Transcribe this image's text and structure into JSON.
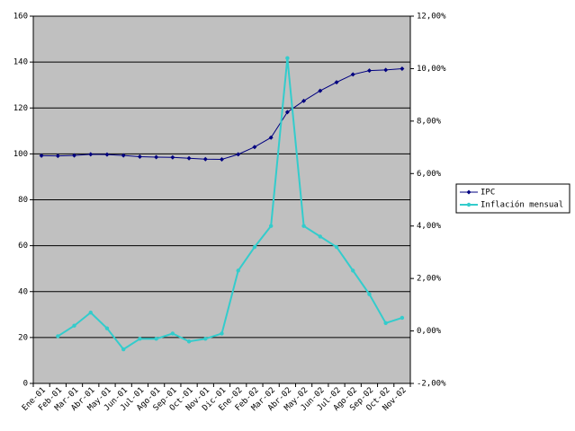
{
  "chart_data": {
    "type": "line",
    "categories": [
      "Ene-01",
      "Feb-01",
      "Mar-01",
      "Abr-01",
      "May-01",
      "Jun-01",
      "Jul-01",
      "Ago-01",
      "Sep-01",
      "Oct-01",
      "Nov-01",
      "Dic-01",
      "Ene-02",
      "Feb-02",
      "Mar-02",
      "Abr-02",
      "May-02",
      "Jun-02",
      "Jul-02",
      "Ago-02",
      "Sep-02",
      "Oct-02",
      "Nov-02"
    ],
    "series": [
      {
        "name": "IPC",
        "color": "#000080",
        "values": [
          99.2,
          99.1,
          99.3,
          99.8,
          99.7,
          99.3,
          98.8,
          98.6,
          98.5,
          98.1,
          97.7,
          97.6,
          99.8,
          103.0,
          107.1,
          118.2,
          123.1,
          127.5,
          131.2,
          134.6,
          136.3,
          136.6,
          137.1
        ]
      },
      {
        "name": "Inflación mensual",
        "color": "#33cccc",
        "axis": "y2",
        "values": [
          null,
          -0.2,
          0.2,
          0.7,
          0.1,
          -0.7,
          -0.3,
          -0.3,
          -0.1,
          -0.4,
          -0.3,
          -0.1,
          2.3,
          3.2,
          4.0,
          10.4,
          4.0,
          3.6,
          3.2,
          2.3,
          1.4,
          0.3,
          0.5
        ]
      }
    ],
    "ylim": [
      0,
      160
    ],
    "yticks": [
      0,
      20,
      40,
      60,
      80,
      100,
      120,
      140,
      160
    ],
    "y2lim": [
      -2,
      12
    ],
    "y2ticks": [
      {
        "value": -2,
        "label": "-2,00%"
      },
      {
        "value": 0,
        "label": "0,00%"
      },
      {
        "value": 2,
        "label": "2,00%"
      },
      {
        "value": 4,
        "label": "4,00%"
      },
      {
        "value": 6,
        "label": "6,00%"
      },
      {
        "value": 8,
        "label": "8,00%"
      },
      {
        "value": 10,
        "label": "10,00%"
      },
      {
        "value": 12,
        "label": "12,00%"
      }
    ],
    "grid": true,
    "legend": "right",
    "background": "#c0c0c0"
  }
}
